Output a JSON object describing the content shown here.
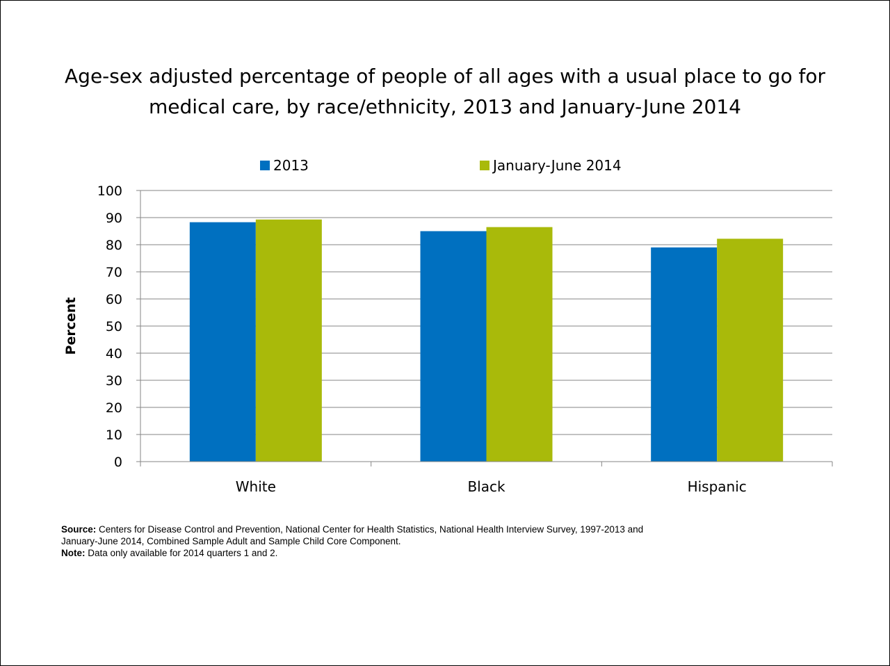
{
  "chart_data": {
    "type": "bar",
    "title": [
      "Age-sex adjusted percentage of people of all ages with a usual place to go for",
      "medical care, by race/ethnicity, 2013 and January-June 2014"
    ],
    "categories": [
      "White",
      "Black",
      "Hispanic"
    ],
    "series": [
      {
        "name": "2013",
        "color": "#0070C0",
        "values": [
          88.3,
          85.0,
          79.0
        ]
      },
      {
        "name": "January-June 2014",
        "color": "#A9BA0A",
        "values": [
          89.3,
          86.5,
          82.2
        ]
      }
    ],
    "xlabel": "",
    "ylabel": "Percent",
    "ylim": [
      0,
      100
    ],
    "yticks": [
      "0",
      "10",
      "20",
      "30",
      "40",
      "50",
      "60",
      "70",
      "80",
      "90",
      "100"
    ],
    "grid": true,
    "legend_position": "top"
  },
  "notes": {
    "source_label": "Source:",
    "source_text_1": " Centers for Disease Control and Prevention, National Center for Health Statistics, National Health Interview Survey, 1997-2013 and",
    "source_text_2": "January-June 2014, Combined Sample Adult and Sample Child Core Component.",
    "note_label": "Note:",
    "note_text": " Data only available for  2014 quarters 1 and 2."
  }
}
